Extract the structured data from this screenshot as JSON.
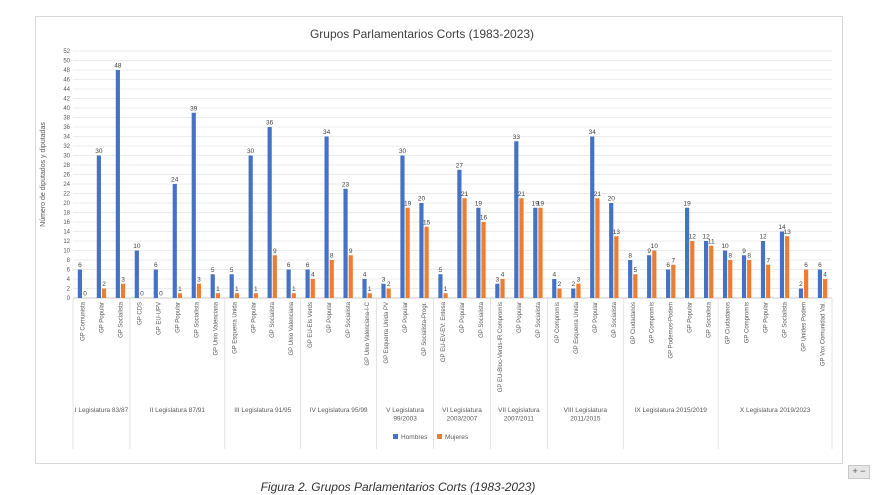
{
  "caption": "Figura 2. Grupos Parlamentarios Corts (1983-2023)",
  "zoom_label": "+ −",
  "chart_data": {
    "type": "bar",
    "title": "Grupos Parlamentarios Corts (1983-2023)",
    "ylabel": "Número de diputados y diputadas",
    "ylim": [
      0,
      52
    ],
    "ystep": 2,
    "grid": true,
    "legend_position": "bottom",
    "colors": {
      "hombres": "#4472c4",
      "mujeres": "#ed7d31",
      "grid": "#d9d9d9",
      "axis": "#bfbfbf",
      "text": "#595959"
    },
    "series": [
      {
        "name": "Hombres",
        "key": "hombres"
      },
      {
        "name": "Mujeres",
        "key": "mujeres"
      }
    ],
    "legislaturas": [
      {
        "label": [
          "I Legislatura 83/87"
        ],
        "groups": [
          {
            "name": "GP Comunista",
            "hombres": 6,
            "mujeres": 0
          },
          {
            "name": "GP Popular",
            "hombres": 30,
            "mujeres": 2
          },
          {
            "name": "GP Socialista",
            "hombres": 48,
            "mujeres": 3
          }
        ]
      },
      {
        "label": [
          "II Legislatura 87/91"
        ],
        "groups": [
          {
            "name": "GP CDS",
            "hombres": 10,
            "mujeres": 0
          },
          {
            "name": "GP EU-UPV",
            "hombres": 6,
            "mujeres": 0
          },
          {
            "name": "GP Popular",
            "hombres": 24,
            "mujeres": 1
          },
          {
            "name": "GP Socialista",
            "hombres": 39,
            "mujeres": 3
          },
          {
            "name": "GP Unio Valenciana",
            "hombres": 5,
            "mujeres": 1
          }
        ]
      },
      {
        "label": [
          "III Legislatura 91/95"
        ],
        "groups": [
          {
            "name": "GP Esquerra Unida",
            "hombres": 5,
            "mujeres": 1
          },
          {
            "name": "GP Popular",
            "hombres": 30,
            "mujeres": 1
          },
          {
            "name": "GP Socialista",
            "hombres": 36,
            "mujeres": 9
          },
          {
            "name": "GP Unio Valenciana",
            "hombres": 6,
            "mujeres": 1
          }
        ]
      },
      {
        "label": [
          "IV Legislatura 95/99"
        ],
        "groups": [
          {
            "name": "GP EU-Els Verds",
            "hombres": 6,
            "mujeres": 4
          },
          {
            "name": "GP Popular",
            "hombres": 34,
            "mujeres": 8
          },
          {
            "name": "GP Socialista",
            "hombres": 23,
            "mujeres": 9
          },
          {
            "name": "GP Unio Valenciana-I-C",
            "hombres": 4,
            "mujeres": 1
          }
        ]
      },
      {
        "label": [
          "V Legislatura",
          "99/2003"
        ],
        "groups": [
          {
            "name": "GP Esquerra Unida PV",
            "hombres": 3,
            "mujeres": 2
          },
          {
            "name": "GP Popular",
            "hombres": 30,
            "mujeres": 19
          },
          {
            "name": "GP Socialista-Progr.",
            "hombres": 20,
            "mujeres": 15
          }
        ]
      },
      {
        "label": [
          "VI Legislatura",
          "2003/2007"
        ],
        "groups": [
          {
            "name": "GP EU-EV-EV: Entesa",
            "hombres": 5,
            "mujeres": 1
          },
          {
            "name": "GP Popular",
            "hombres": 27,
            "mujeres": 21
          },
          {
            "name": "GP Socialista",
            "hombres": 19,
            "mujeres": 16
          }
        ]
      },
      {
        "label": [
          "VII Legislatura",
          "2007/2011"
        ],
        "groups": [
          {
            "name": "GP EU-Bloc-Verds-IR Compromís",
            "hombres": 3,
            "mujeres": 4
          },
          {
            "name": "GP Popular",
            "hombres": 33,
            "mujeres": 21
          },
          {
            "name": "GP Socialista",
            "hombres": 19,
            "mujeres": 19
          }
        ]
      },
      {
        "label": [
          "VIII Legislatura",
          "2011/2015"
        ],
        "groups": [
          {
            "name": "GP Compromís",
            "hombres": 4,
            "mujeres": 2
          },
          {
            "name": "GP Esquerra Unida",
            "hombres": 2,
            "mujeres": 3
          },
          {
            "name": "GP Popular",
            "hombres": 34,
            "mujeres": 21
          },
          {
            "name": "GP Socialista",
            "hombres": 20,
            "mujeres": 13
          }
        ]
      },
      {
        "label": [
          "IX Legislatura 2015/2019"
        ],
        "groups": [
          {
            "name": "GP Ciudadanos",
            "hombres": 8,
            "mujeres": 5
          },
          {
            "name": "GP Compromís",
            "hombres": 9,
            "mujeres": 10
          },
          {
            "name": "GP Podemos-Podem",
            "hombres": 6,
            "mujeres": 7
          },
          {
            "name": "GP Popular",
            "hombres": 19,
            "mujeres": 12
          },
          {
            "name": "GP Socialista",
            "hombres": 12,
            "mujeres": 11
          }
        ]
      },
      {
        "label": [
          "X Legislatura 2019/2023"
        ],
        "groups": [
          {
            "name": "GP Ciudadanos",
            "hombres": 10,
            "mujeres": 8
          },
          {
            "name": "GP Compromís",
            "hombres": 9,
            "mujeres": 8
          },
          {
            "name": "GP Popular",
            "hombres": 12,
            "mujeres": 7
          },
          {
            "name": "GP Socialista",
            "hombres": 14,
            "mujeres": 13
          },
          {
            "name": "GP Unides Podem",
            "hombres": 2,
            "mujeres": 6
          },
          {
            "name": "GP Vox Comunidad Val.",
            "hombres": 6,
            "mujeres": 4
          }
        ]
      }
    ]
  }
}
